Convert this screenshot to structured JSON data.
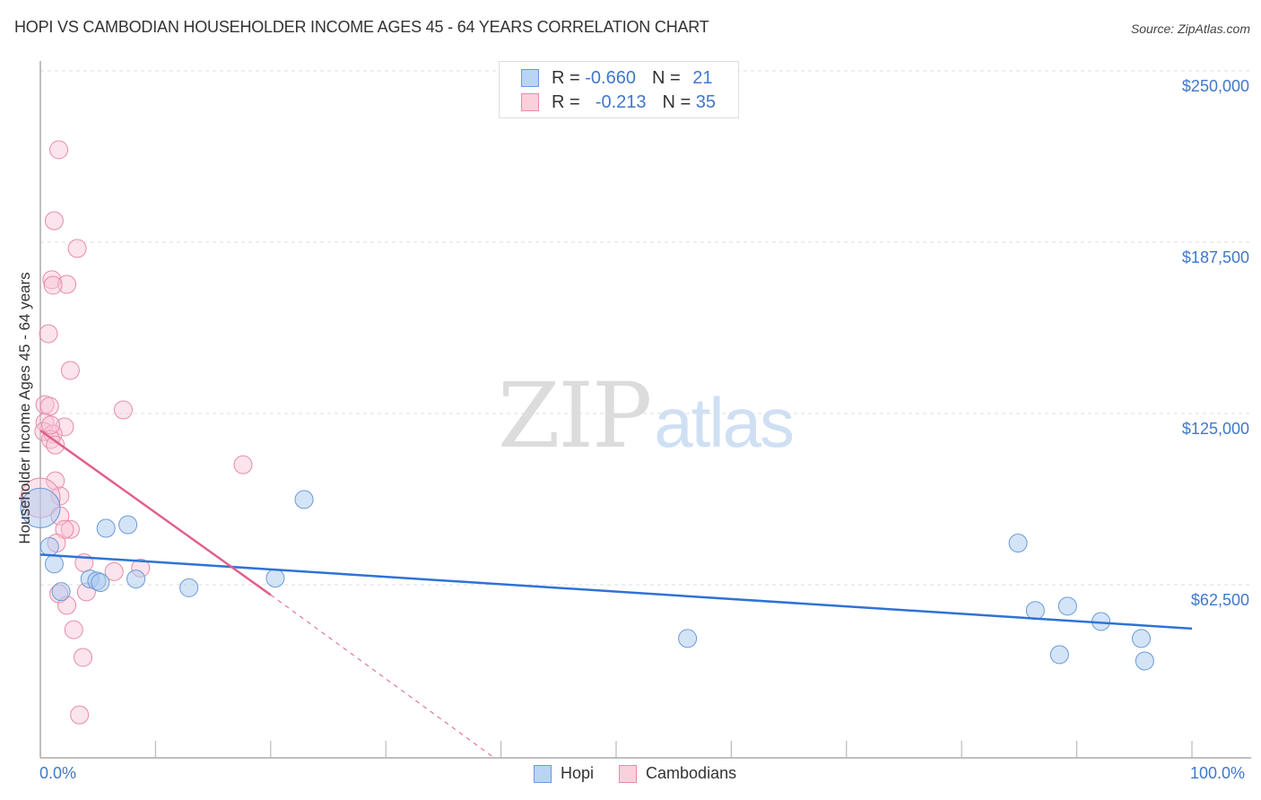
{
  "header": {
    "title": "HOPI VS CAMBODIAN HOUSEHOLDER INCOME AGES 45 - 64 YEARS CORRELATION CHART",
    "source": "Source: ZipAtlas.com"
  },
  "watermark": {
    "zip": "ZIP",
    "atlas": "atlas"
  },
  "legend": {
    "rows": [
      {
        "series": "Hopi",
        "r_label": "R =",
        "r_value": "-0.660",
        "n_label": "N =",
        "n_value": "21",
        "color": "#a9c9f0",
        "border": "#6a9ad8"
      },
      {
        "series": "Cambodians",
        "r_label": "R =",
        "r_value": "-0.213",
        "n_label": "N =",
        "n_value": "35",
        "color": "#f9c4d4",
        "border": "#e88aa8"
      }
    ]
  },
  "bottom_legend": [
    {
      "label": "Hopi",
      "color": "#a9c9f0",
      "border": "#6a9ad8"
    },
    {
      "label": "Cambodians",
      "color": "#f9c4d4",
      "border": "#e88aa8"
    }
  ],
  "axes": {
    "y_label": "Householder Income Ages 45 - 64 years",
    "y_ticks": [
      "$250,000",
      "$187,500",
      "$125,000",
      "$62,500"
    ],
    "x_ticks": [
      "0.0%",
      "100.0%"
    ]
  },
  "colors": {
    "hopi_line": "#2f72d6",
    "cambodian_line": "#e0608a",
    "tick_text": "#3f78cc",
    "grid": "#d8d8d8"
  },
  "chart_data": {
    "type": "scatter",
    "title": "HOPI VS CAMBODIAN HOUSEHOLDER INCOME AGES 45 - 64 YEARS CORRELATION CHART",
    "xlabel": "",
    "ylabel": "Householder Income Ages 45 - 64 years",
    "xlim": [
      0,
      100
    ],
    "ylim": [
      0,
      262000
    ],
    "x_ticks": [
      "0.0%",
      "100.0%"
    ],
    "y_ticks": [
      62500,
      125000,
      187500,
      250000
    ],
    "grid": true,
    "legend_position": "top-center",
    "series": [
      {
        "name": "Hopi",
        "color": "#a9c9f0",
        "r": -0.66,
        "n": 21,
        "trend": {
          "x": [
            0,
            100
          ],
          "y": [
            73500,
            46500
          ]
        },
        "points": [
          {
            "x": 0.0,
            "y": 90500,
            "size": "large"
          },
          {
            "x": 0.8,
            "y": 76400
          },
          {
            "x": 1.2,
            "y": 70100
          },
          {
            "x": 1.8,
            "y": 60000
          },
          {
            "x": 4.3,
            "y": 64600
          },
          {
            "x": 4.9,
            "y": 63900
          },
          {
            "x": 5.2,
            "y": 63300
          },
          {
            "x": 5.7,
            "y": 83100
          },
          {
            "x": 7.6,
            "y": 84400
          },
          {
            "x": 8.3,
            "y": 64600
          },
          {
            "x": 12.9,
            "y": 61400
          },
          {
            "x": 20.4,
            "y": 64900
          },
          {
            "x": 22.9,
            "y": 93600
          },
          {
            "x": 56.2,
            "y": 42900
          },
          {
            "x": 84.9,
            "y": 77700
          },
          {
            "x": 86.4,
            "y": 53100
          },
          {
            "x": 88.5,
            "y": 37000
          },
          {
            "x": 89.2,
            "y": 54700
          },
          {
            "x": 92.1,
            "y": 49100
          },
          {
            "x": 95.6,
            "y": 42900
          },
          {
            "x": 95.9,
            "y": 34700
          }
        ]
      },
      {
        "name": "Cambodians",
        "color": "#f9c4d4",
        "r": -0.213,
        "n": 35,
        "trend": {
          "x": [
            0,
            20.0
          ],
          "y": [
            118800,
            58800
          ]
        },
        "trend_extrapolated": {
          "x": [
            20.0,
            39.2
          ],
          "y": [
            58800,
            0
          ]
        },
        "points": [
          {
            "x": 1.6,
            "y": 221200
          },
          {
            "x": 1.2,
            "y": 195300
          },
          {
            "x": 3.2,
            "y": 185200
          },
          {
            "x": 1.0,
            "y": 173800
          },
          {
            "x": 2.3,
            "y": 172100
          },
          {
            "x": 1.1,
            "y": 171800
          },
          {
            "x": 0.7,
            "y": 154100
          },
          {
            "x": 2.6,
            "y": 140700
          },
          {
            "x": 7.2,
            "y": 126300
          },
          {
            "x": 0.4,
            "y": 128200
          },
          {
            "x": 0.8,
            "y": 127600
          },
          {
            "x": 0.4,
            "y": 121700
          },
          {
            "x": 2.1,
            "y": 120100
          },
          {
            "x": 0.3,
            "y": 118400
          },
          {
            "x": 1.1,
            "y": 117500
          },
          {
            "x": 0.9,
            "y": 115500
          },
          {
            "x": 1.3,
            "y": 113500
          },
          {
            "x": 1.3,
            "y": 100400
          },
          {
            "x": 1.7,
            "y": 94900
          },
          {
            "x": 0.0,
            "y": 94200,
            "size": "large"
          },
          {
            "x": 1.7,
            "y": 87600
          },
          {
            "x": 2.6,
            "y": 82700
          },
          {
            "x": 2.1,
            "y": 82700
          },
          {
            "x": 1.4,
            "y": 77700
          },
          {
            "x": 3.8,
            "y": 70500
          },
          {
            "x": 6.4,
            "y": 67300
          },
          {
            "x": 8.7,
            "y": 68600
          },
          {
            "x": 17.6,
            "y": 106300
          },
          {
            "x": 4.0,
            "y": 59900
          },
          {
            "x": 1.6,
            "y": 59200
          },
          {
            "x": 2.3,
            "y": 55000
          },
          {
            "x": 2.9,
            "y": 46100
          },
          {
            "x": 3.7,
            "y": 36000
          },
          {
            "x": 3.4,
            "y": 15000
          },
          {
            "x": 0.9,
            "y": 120800
          }
        ]
      }
    ]
  }
}
